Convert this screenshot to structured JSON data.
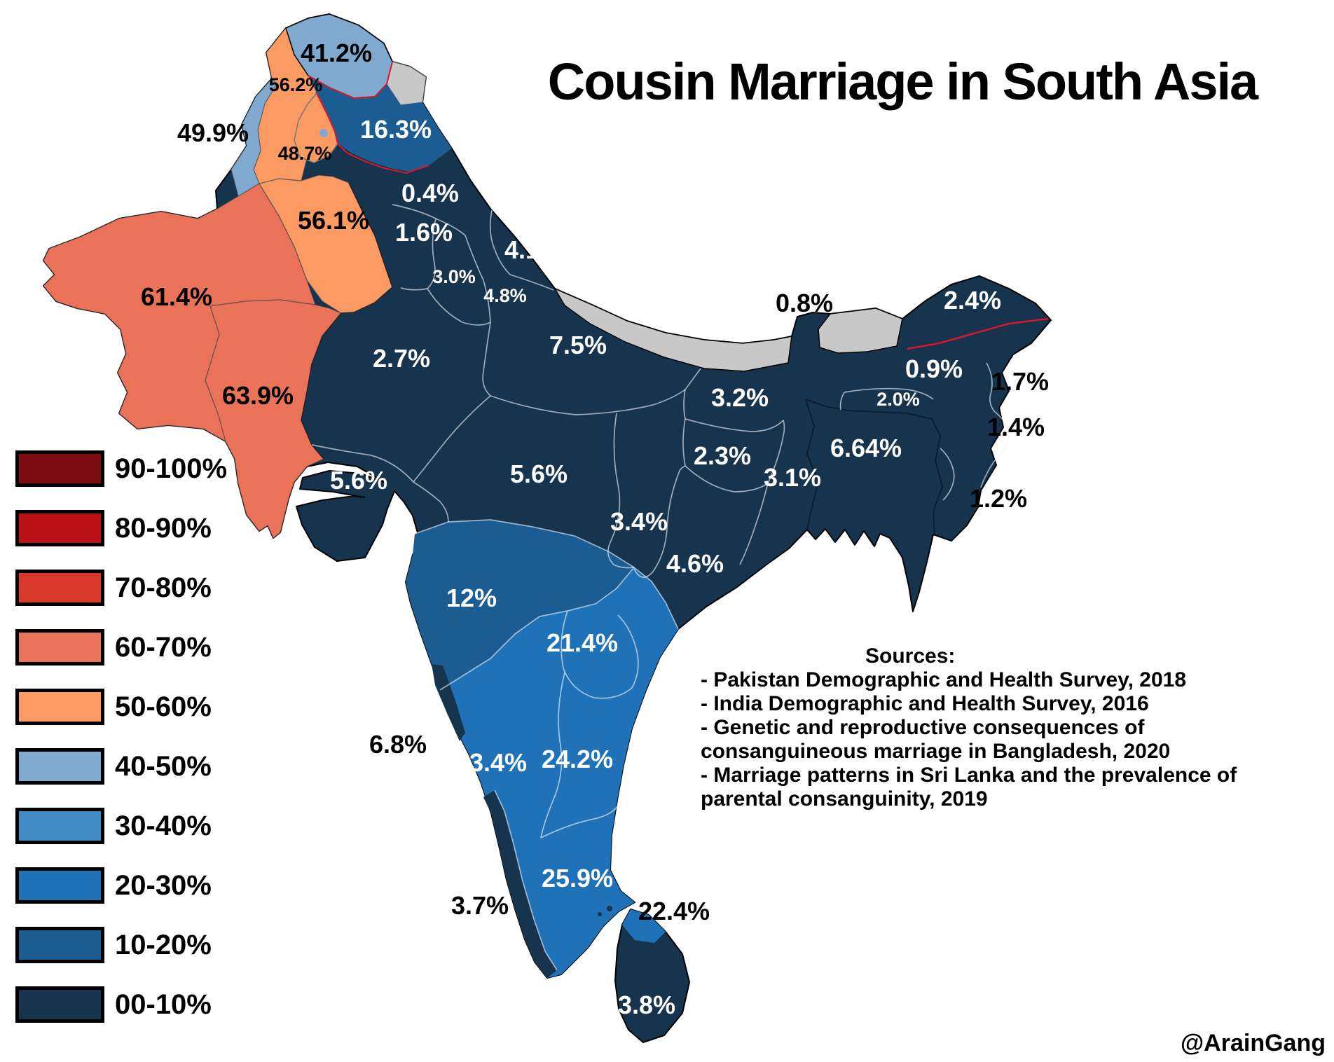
{
  "title": "Cousin Marriage in South Asia",
  "attribution": "@ArainGang",
  "palette": {
    "navy": "#17344f",
    "blue10": "#1b5c92",
    "blue20": "#1f72b7",
    "blue30": "#3f8cc4",
    "blue40": "#80a9d0",
    "orange50": "#fb9a62",
    "salmon60": "#e97258",
    "red70": "#d8392b",
    "red80": "#bb1015",
    "red90": "#7c0c12",
    "nodata_grey": "#c8c8c8",
    "disputed_red_line": "#d6182a"
  },
  "legend": {
    "items": [
      {
        "label": "90-100%",
        "color": "#7c0c12"
      },
      {
        "label": "80-90%",
        "color": "#bb1015"
      },
      {
        "label": "70-80%",
        "color": "#d8392b"
      },
      {
        "label": "60-70%",
        "color": "#e97258"
      },
      {
        "label": "50-60%",
        "color": "#fb9a62"
      },
      {
        "label": "40-50%",
        "color": "#80a9d0"
      },
      {
        "label": "30-40%",
        "color": "#3f8cc4"
      },
      {
        "label": "20-30%",
        "color": "#1f72b7"
      },
      {
        "label": "10-20%",
        "color": "#1b5c92"
      },
      {
        "label": "00-10%",
        "color": "#17344f"
      }
    ]
  },
  "sources": {
    "heading": "Sources:",
    "items": [
      "- Pakistan Demographic and Health Survey, 2018",
      "- India Demographic and Health Survey, 2016",
      "- Genetic and reproductive consequences of consanguineous marriage in Bangladesh, 2020",
      "- Marriage patterns in Sri Lanka and the prevalence of parental consanguinity, 2019"
    ]
  },
  "map_labels": {
    "gilgit_baltistan": "41.2%",
    "khyber_pakhtunkhwa": "56.2%",
    "fata_strip": "49.9%",
    "azad_kashmir": "48.7%",
    "jammu_kashmir": "16.3%",
    "punjab_pakistan": "56.1%",
    "balochistan": "61.4%",
    "sindh": "63.9%",
    "himachal_pradesh": "0.4%",
    "punjab_india": "1.6%",
    "uttarakhand": "4.1%",
    "haryana": "3.0%",
    "delhi_region": "4.8%",
    "uttar_pradesh": "7.5%",
    "rajasthan": "2.7%",
    "gujarat": "5.6%",
    "madhya_pradesh": "5.6%",
    "chhattisgarh": "3.4%",
    "bihar": "3.2%",
    "sikkim": "0.8%",
    "jharkhand": "2.3%",
    "west_bengal": "3.1%",
    "bangladesh": "6.64%",
    "arunachal_pradesh": "2.4%",
    "assam": "0.9%",
    "meghalaya": "2.0%",
    "nagaland": "1.7%",
    "manipur": "1.4%",
    "mizoram": "1.2%",
    "odisha": "4.6%",
    "maharashtra": "12%",
    "telangana": "21.4%",
    "goa": "6.8%",
    "karnataka": "23.4%",
    "andhra_pradesh": "24.2%",
    "tamil_nadu": "25.9%",
    "kerala": "3.7%",
    "sri_lanka_north": "22.4%",
    "sri_lanka": "3.8%"
  }
}
